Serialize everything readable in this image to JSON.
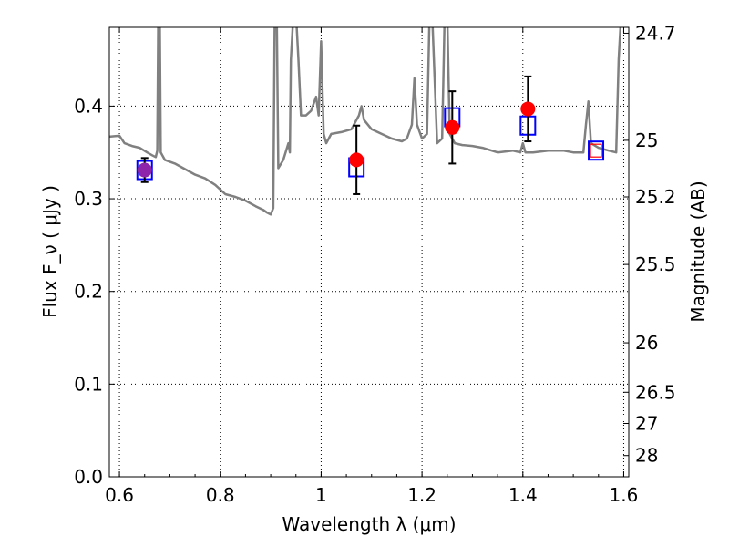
{
  "chart_data": {
    "type": "scatter",
    "xlabel": "Wavelength  λ (μm)",
    "ylabel": "Flux  F_ν ( μJy )",
    "y2label": "Magnitude (AB)",
    "xlim": [
      0.58,
      1.61
    ],
    "ylim": [
      0.0,
      0.485
    ],
    "x_ticks": [
      0.6,
      0.8,
      1.0,
      1.2,
      1.4,
      1.6
    ],
    "x_tick_labels": [
      "0.6",
      "0.8",
      "1",
      "1.2",
      "1.4",
      "1.6"
    ],
    "y_ticks": [
      0.0,
      0.1,
      0.2,
      0.3,
      0.4
    ],
    "y_tick_labels": [
      "0.0",
      "0.1",
      "0.2",
      "0.3",
      "0.4"
    ],
    "mag_ticks": [
      24.7,
      25,
      25.2,
      25.5,
      26,
      26.5,
      27,
      28
    ],
    "mag_tick_labels": [
      "24.7",
      "25",
      "25.2",
      "25.5",
      "26",
      "26.5",
      "27",
      "28"
    ],
    "grid": true,
    "colors": {
      "model_line": "#808080",
      "model_points": "#0000ff",
      "observed_points": "#ff0000",
      "upper_band_point": "#8e24aa",
      "errorbars": "#000000"
    },
    "model_spectrum": [
      [
        0.58,
        0.367
      ],
      [
        0.6,
        0.368
      ],
      [
        0.61,
        0.36
      ],
      [
        0.625,
        0.357
      ],
      [
        0.64,
        0.355
      ],
      [
        0.655,
        0.35
      ],
      [
        0.665,
        0.347
      ],
      [
        0.672,
        0.345
      ],
      [
        0.675,
        0.352
      ],
      [
        0.677,
        0.5
      ],
      [
        0.68,
        0.5
      ],
      [
        0.682,
        0.35
      ],
      [
        0.69,
        0.342
      ],
      [
        0.71,
        0.338
      ],
      [
        0.73,
        0.332
      ],
      [
        0.75,
        0.326
      ],
      [
        0.77,
        0.322
      ],
      [
        0.79,
        0.315
      ],
      [
        0.81,
        0.305
      ],
      [
        0.83,
        0.302
      ],
      [
        0.85,
        0.298
      ],
      [
        0.87,
        0.292
      ],
      [
        0.885,
        0.288
      ],
      [
        0.893,
        0.285
      ],
      [
        0.9,
        0.283
      ],
      [
        0.905,
        0.29
      ],
      [
        0.908,
        0.5
      ],
      [
        0.912,
        0.5
      ],
      [
        0.915,
        0.333
      ],
      [
        0.925,
        0.342
      ],
      [
        0.935,
        0.36
      ],
      [
        0.938,
        0.35
      ],
      [
        0.94,
        0.45
      ],
      [
        0.945,
        0.5
      ],
      [
        0.95,
        0.5
      ],
      [
        0.955,
        0.45
      ],
      [
        0.96,
        0.39
      ],
      [
        0.97,
        0.39
      ],
      [
        0.98,
        0.395
      ],
      [
        0.99,
        0.41
      ],
      [
        0.995,
        0.39
      ],
      [
        1.0,
        0.47
      ],
      [
        1.005,
        0.37
      ],
      [
        1.01,
        0.36
      ],
      [
        1.02,
        0.37
      ],
      [
        1.04,
        0.372
      ],
      [
        1.06,
        0.375
      ],
      [
        1.075,
        0.39
      ],
      [
        1.08,
        0.4
      ],
      [
        1.085,
        0.385
      ],
      [
        1.1,
        0.375
      ],
      [
        1.12,
        0.37
      ],
      [
        1.14,
        0.365
      ],
      [
        1.16,
        0.362
      ],
      [
        1.17,
        0.365
      ],
      [
        1.18,
        0.38
      ],
      [
        1.185,
        0.43
      ],
      [
        1.19,
        0.38
      ],
      [
        1.2,
        0.365
      ],
      [
        1.21,
        0.37
      ],
      [
        1.215,
        0.5
      ],
      [
        1.22,
        0.5
      ],
      [
        1.23,
        0.36
      ],
      [
        1.24,
        0.365
      ],
      [
        1.245,
        0.5
      ],
      [
        1.25,
        0.5
      ],
      [
        1.255,
        0.37
      ],
      [
        1.265,
        0.36
      ],
      [
        1.28,
        0.358
      ],
      [
        1.3,
        0.357
      ],
      [
        1.32,
        0.355
      ],
      [
        1.35,
        0.35
      ],
      [
        1.38,
        0.352
      ],
      [
        1.395,
        0.35
      ],
      [
        1.4,
        0.36
      ],
      [
        1.405,
        0.35
      ],
      [
        1.42,
        0.35
      ],
      [
        1.45,
        0.352
      ],
      [
        1.48,
        0.352
      ],
      [
        1.5,
        0.35
      ],
      [
        1.52,
        0.35
      ],
      [
        1.525,
        0.38
      ],
      [
        1.53,
        0.405
      ],
      [
        1.535,
        0.36
      ],
      [
        1.55,
        0.355
      ],
      [
        1.57,
        0.352
      ],
      [
        1.585,
        0.35
      ],
      [
        1.59,
        0.45
      ],
      [
        1.595,
        0.5
      ],
      [
        1.61,
        0.5
      ]
    ],
    "model_photometry": [
      {
        "x": 0.65,
        "y": 0.331
      },
      {
        "x": 1.07,
        "y": 0.334
      },
      {
        "x": 1.26,
        "y": 0.388
      },
      {
        "x": 1.41,
        "y": 0.379
      },
      {
        "x": 1.545,
        "y": 0.352
      }
    ],
    "observed_photometry": [
      {
        "x": 0.65,
        "y": 0.331,
        "yerr": 0.013
      },
      {
        "x": 1.07,
        "y": 0.342,
        "yerr": 0.037
      },
      {
        "x": 1.26,
        "y": 0.377,
        "yerr": 0.039
      },
      {
        "x": 1.41,
        "y": 0.397,
        "yerr": 0.035
      }
    ],
    "extra_point": {
      "x": 1.545,
      "y": 0.352
    }
  }
}
